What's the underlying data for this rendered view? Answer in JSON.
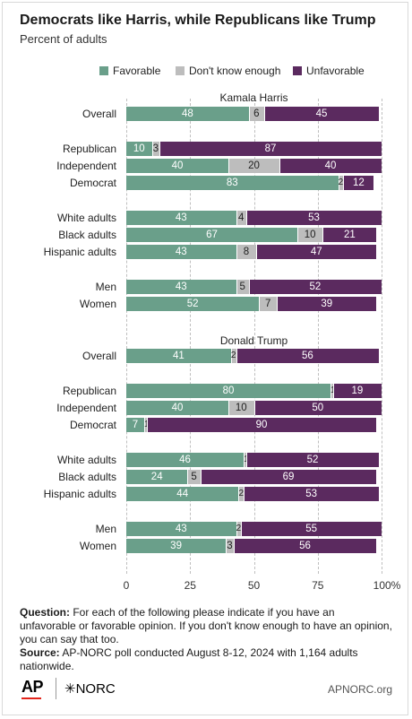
{
  "title": "Democrats like Harris, while Republicans like Trump",
  "subtitle": "Percent of adults",
  "legend": [
    "Favorable",
    "Don't know enough",
    "Unfavorable"
  ],
  "colors": {
    "favorable": "#6a9f8a",
    "dontknow": "#bdbdbd",
    "unfavorable": "#5b2a5f"
  },
  "chart_data": {
    "type": "bar",
    "orientation": "horizontal-stacked",
    "xlim": [
      0,
      100
    ],
    "xticks": [
      "0",
      "25",
      "50",
      "75",
      "100%"
    ],
    "series_names": [
      "Favorable",
      "Don't know enough",
      "Unfavorable"
    ],
    "groups": [
      {
        "title": "Kamala Harris",
        "rows": [
          {
            "label": "Overall",
            "values": [
              48,
              6,
              45
            ]
          },
          {
            "label": "Republican",
            "values": [
              10,
              3,
              87
            ]
          },
          {
            "label": "Independent",
            "values": [
              40,
              20,
              40
            ]
          },
          {
            "label": "Democrat",
            "values": [
              83,
              2,
              12
            ]
          },
          {
            "label": "White adults",
            "values": [
              43,
              4,
              53
            ]
          },
          {
            "label": "Black adults",
            "values": [
              67,
              10,
              21
            ]
          },
          {
            "label": "Hispanic adults",
            "values": [
              43,
              8,
              47
            ]
          },
          {
            "label": "Men",
            "values": [
              43,
              5,
              52
            ]
          },
          {
            "label": "Women",
            "values": [
              52,
              7,
              39
            ]
          }
        ]
      },
      {
        "title": "Donald Trump",
        "rows": [
          {
            "label": "Overall",
            "values": [
              41,
              2,
              56
            ]
          },
          {
            "label": "Republican",
            "values": [
              80,
              1,
              19
            ]
          },
          {
            "label": "Independent",
            "values": [
              40,
              10,
              50
            ]
          },
          {
            "label": "Democrat",
            "values": [
              7,
              1,
              90
            ]
          },
          {
            "label": "White adults",
            "values": [
              46,
              1,
              52
            ]
          },
          {
            "label": "Black adults",
            "values": [
              24,
              5,
              69
            ]
          },
          {
            "label": "Hispanic adults",
            "values": [
              44,
              2,
              53
            ]
          },
          {
            "label": "Men",
            "values": [
              43,
              2,
              55
            ]
          },
          {
            "label": "Women",
            "values": [
              39,
              3,
              56
            ]
          }
        ]
      }
    ]
  },
  "notes": {
    "question_label": "Question:",
    "question": "For each of the following please indicate if you have an unfavorable or favorable opinion. If you don't know enough to have an opinion, you can say that too.",
    "source_label": "Source:",
    "source": "AP-NORC poll conducted August 8-12, 2024 with 1,164 adults nationwide."
  },
  "footer": {
    "ap": "AP",
    "norc": "✳NORC",
    "url": "APNORC.org"
  }
}
